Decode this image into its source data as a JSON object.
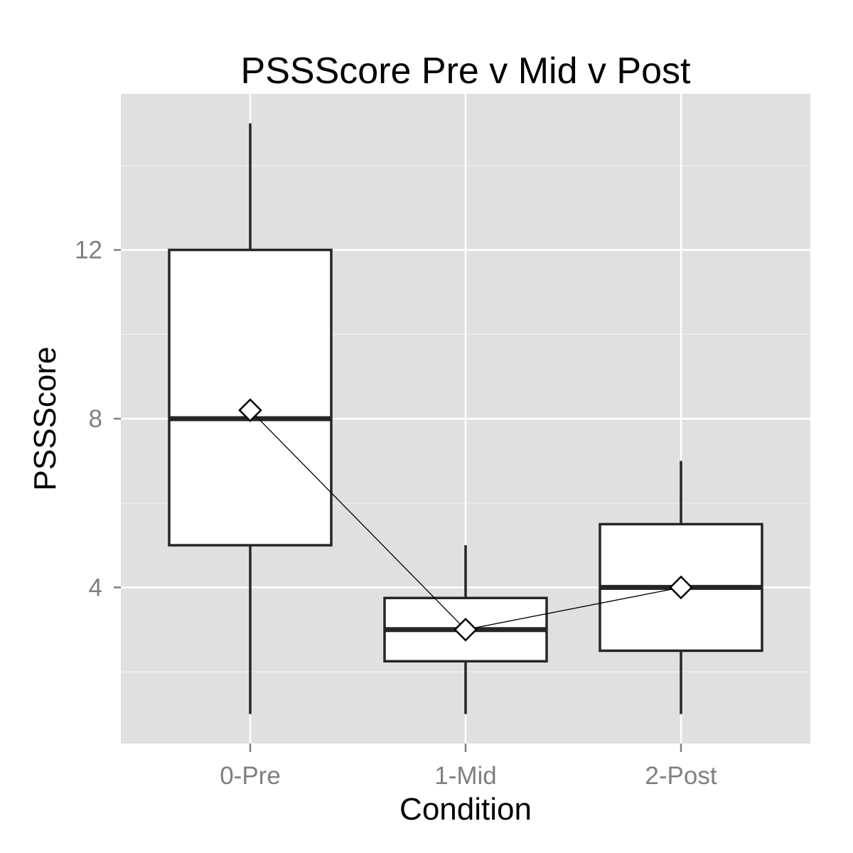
{
  "chart_data": {
    "type": "box",
    "title": "PSSScore Pre v Mid v Post",
    "xlabel": "Condition",
    "ylabel": "PSSScore",
    "categories": [
      "0-Pre",
      "1-Mid",
      "2-Post"
    ],
    "y_ticks": [
      4,
      8,
      12
    ],
    "ylim": [
      0.3,
      15.7
    ],
    "grid": true,
    "legend": "none",
    "boxes": [
      {
        "category": "0-Pre",
        "min": 1,
        "q1": 5,
        "median": 8,
        "q3": 12,
        "max": 15,
        "mean": 8.2
      },
      {
        "category": "1-Mid",
        "min": 1,
        "q1": 2.25,
        "median": 3,
        "q3": 3.75,
        "max": 5,
        "mean": 3.0
      },
      {
        "category": "2-Post",
        "min": 1,
        "q1": 2.5,
        "median": 4,
        "q3": 5.5,
        "max": 7,
        "mean": 4.0
      }
    ],
    "mean_line": {
      "values": [
        8.2,
        3.0,
        4.0
      ]
    },
    "colors": {
      "panel": "#e0e0e0",
      "grid_major": "#ffffff",
      "grid_minor": "#f0f0f0",
      "box_fill": "#ffffff",
      "box_stroke": "#262626",
      "tick_text": "#7f7f7f",
      "tick_mark": "#7f7f7f"
    }
  }
}
